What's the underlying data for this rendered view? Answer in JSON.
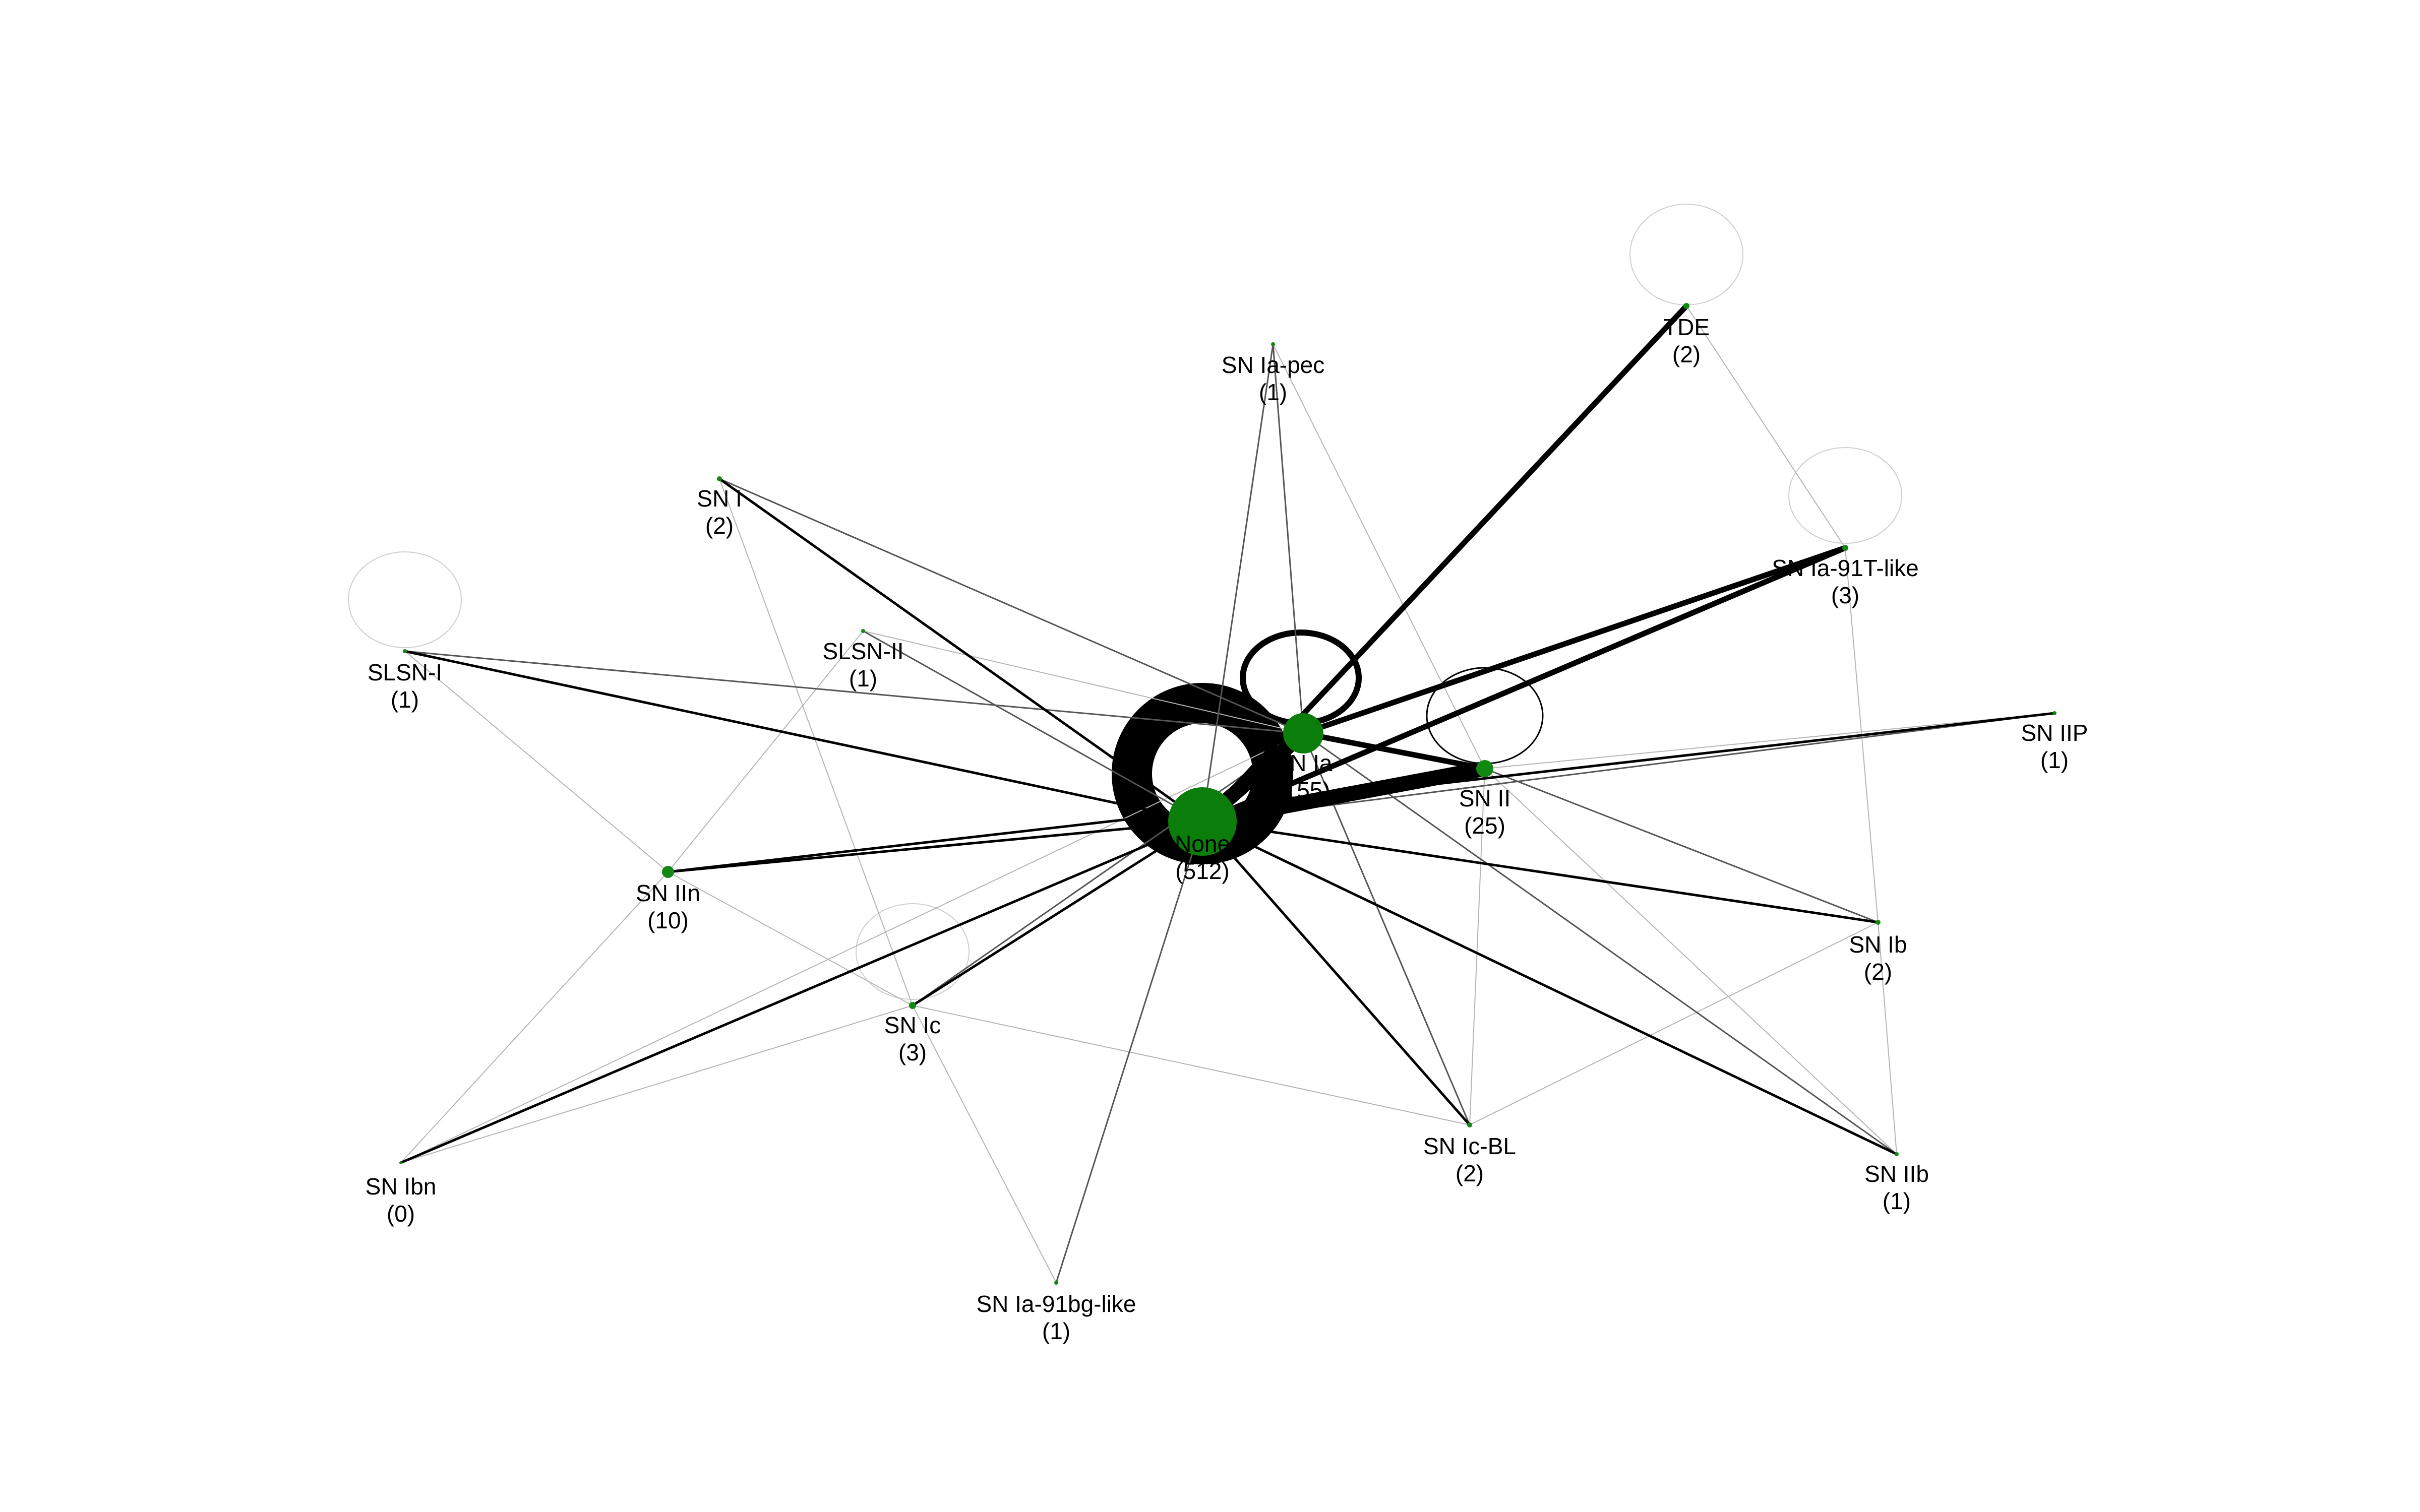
{
  "colors": {
    "background": "#ffffff",
    "node_fill": "#118811",
    "node_large_fill": "#0b7d0b",
    "edge_dark": "#000000",
    "edge_mid": "#555555",
    "edge_light": "#b5b5b5"
  },
  "nodes": [
    {
      "id": "none",
      "name": "None",
      "count": "(512)"
    },
    {
      "id": "snia",
      "name": "SN Ia",
      "count": "(155)"
    },
    {
      "id": "snii",
      "name": "SN II",
      "count": "(25)"
    },
    {
      "id": "sniin",
      "name": "SN IIn",
      "count": "(10)"
    },
    {
      "id": "snic",
      "name": "SN Ic",
      "count": "(3)"
    },
    {
      "id": "snia91t",
      "name": "SN Ia-91T-like",
      "count": "(3)"
    },
    {
      "id": "tde",
      "name": "TDE",
      "count": "(2)"
    },
    {
      "id": "sni",
      "name": "SN I",
      "count": "(2)"
    },
    {
      "id": "snib",
      "name": "SN Ib",
      "count": "(2)"
    },
    {
      "id": "snicbl",
      "name": "SN Ic-BL",
      "count": "(2)"
    },
    {
      "id": "sniapec",
      "name": "SN Ia-pec",
      "count": "(1)"
    },
    {
      "id": "slsni",
      "name": "SLSN-I",
      "count": "(1)"
    },
    {
      "id": "slsnii",
      "name": "SLSN-II",
      "count": "(1)"
    },
    {
      "id": "sniip",
      "name": "SN IIP",
      "count": "(1)"
    },
    {
      "id": "sniib",
      "name": "SN IIb",
      "count": "(1)"
    },
    {
      "id": "snia91bg",
      "name": "SN Ia-91bg-like",
      "count": "(1)"
    },
    {
      "id": "snibn",
      "name": "SN Ibn",
      "count": "(0)"
    }
  ],
  "edges": [
    {
      "source": "none",
      "target": "snia",
      "weight": "heavy"
    },
    {
      "source": "none",
      "target": "snii",
      "weight": "heavy"
    },
    {
      "source": "snia",
      "target": "snii",
      "weight": "strong"
    },
    {
      "source": "none",
      "target": "tde",
      "weight": "strong"
    },
    {
      "source": "none",
      "target": "snia91t",
      "weight": "strong"
    },
    {
      "source": "snia",
      "target": "snia91t",
      "weight": "strong"
    },
    {
      "source": "none",
      "target": "sni",
      "weight": "medium"
    },
    {
      "source": "none",
      "target": "slsni",
      "weight": "medium"
    },
    {
      "source": "none",
      "target": "sniin",
      "weight": "medium"
    },
    {
      "source": "none",
      "target": "snic",
      "weight": "medium"
    },
    {
      "source": "none",
      "target": "snicbl",
      "weight": "medium"
    },
    {
      "source": "none",
      "target": "sniib",
      "weight": "medium"
    },
    {
      "source": "none",
      "target": "snib",
      "weight": "medium"
    },
    {
      "source": "none",
      "target": "snibn",
      "weight": "medium"
    },
    {
      "source": "sniin",
      "target": "sniip",
      "weight": "medium"
    },
    {
      "source": "none",
      "target": "slsnii",
      "weight": "light"
    },
    {
      "source": "none",
      "target": "sniapec",
      "weight": "light"
    },
    {
      "source": "snia",
      "target": "sniapec",
      "weight": "light"
    },
    {
      "source": "snia",
      "target": "sni",
      "weight": "light"
    },
    {
      "source": "snia",
      "target": "slsni",
      "weight": "light"
    },
    {
      "source": "snia",
      "target": "snicbl",
      "weight": "light"
    },
    {
      "source": "snia",
      "target": "sniib",
      "weight": "light"
    },
    {
      "source": "snia",
      "target": "snic",
      "weight": "light"
    },
    {
      "source": "snii",
      "target": "snib",
      "weight": "light"
    },
    {
      "source": "none",
      "target": "sniip",
      "weight": "light"
    },
    {
      "source": "none",
      "target": "snia91bg",
      "weight": "light"
    },
    {
      "source": "slsni",
      "target": "sniin",
      "weight": "faint"
    },
    {
      "source": "slsnii",
      "target": "sniin",
      "weight": "faint"
    },
    {
      "source": "sni",
      "target": "snic",
      "weight": "faint"
    },
    {
      "source": "sniapec",
      "target": "snii",
      "weight": "faint"
    },
    {
      "source": "tde",
      "target": "snia91t",
      "weight": "faint"
    },
    {
      "source": "snia91t",
      "target": "snib",
      "weight": "faint"
    },
    {
      "source": "snib",
      "target": "sniib",
      "weight": "faint"
    },
    {
      "source": "snicbl",
      "target": "snib",
      "weight": "faint"
    },
    {
      "source": "snii",
      "target": "snicbl",
      "weight": "faint"
    },
    {
      "source": "snia91bg",
      "target": "snic",
      "weight": "faint"
    },
    {
      "source": "snibn",
      "target": "sniin",
      "weight": "faint"
    },
    {
      "source": "snibn",
      "target": "snic",
      "weight": "faint"
    },
    {
      "source": "snic",
      "target": "snicbl",
      "weight": "faint"
    },
    {
      "source": "snia91bg",
      "target": "none",
      "weight": "faint"
    },
    {
      "source": "sniin",
      "target": "snic",
      "weight": "faint"
    },
    {
      "source": "snii",
      "target": "sniip",
      "weight": "faint"
    },
    {
      "source": "snii",
      "target": "sniib",
      "weight": "faint"
    },
    {
      "source": "snibn",
      "target": "snia",
      "weight": "faint"
    },
    {
      "source": "slsnii",
      "target": "snia",
      "weight": "faint"
    }
  ],
  "self_loops": [
    {
      "node": "none",
      "weight": "heavy"
    },
    {
      "node": "snia",
      "weight": "strong"
    },
    {
      "node": "snii",
      "weight": "medium"
    },
    {
      "node": "tde",
      "weight": "faint"
    },
    {
      "node": "snia91t",
      "weight": "faint"
    },
    {
      "node": "slsni",
      "weight": "faint"
    },
    {
      "node": "snic",
      "weight": "faint"
    }
  ]
}
